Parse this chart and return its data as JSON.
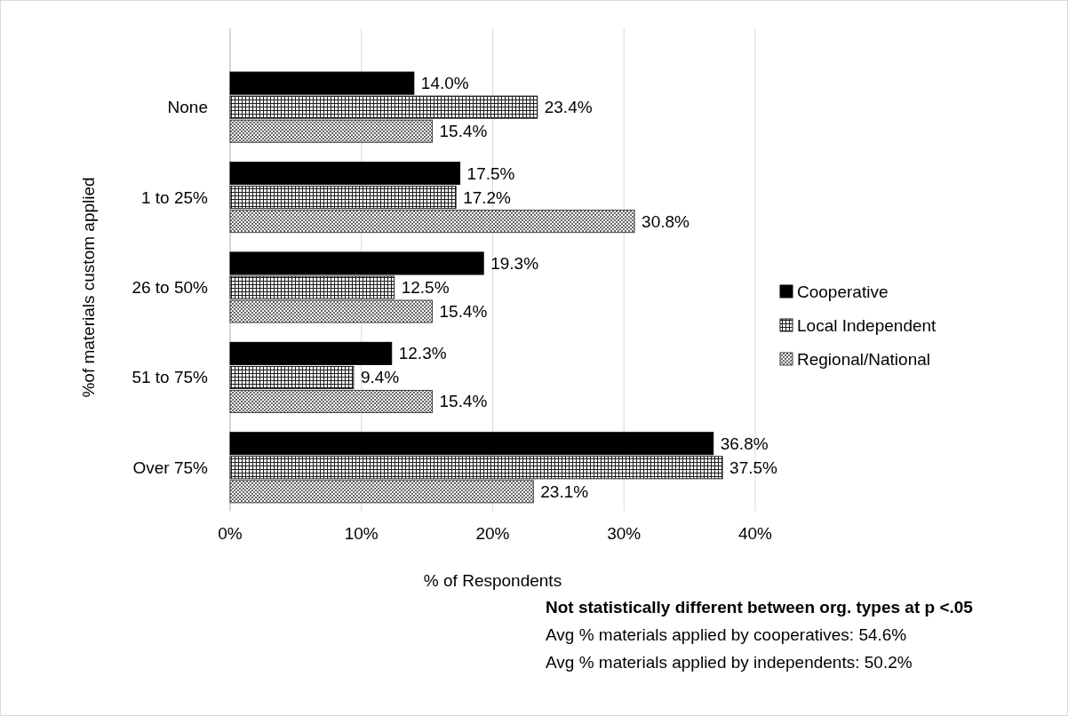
{
  "chart_data": {
    "type": "bar",
    "orientation": "horizontal",
    "xlabel": "% of Respondents",
    "ylabel": "%of materials custom applied",
    "categories": [
      "None",
      "1 to 25%",
      "26 to 50%",
      "51 to 75%",
      "Over 75%"
    ],
    "series": [
      {
        "name": "Cooperative",
        "color": "#000000",
        "values": [
          14.0,
          17.5,
          19.3,
          12.3,
          36.8
        ],
        "value_labels": [
          "14.0%",
          "17.5%",
          "19.3%",
          "12.3%",
          "36.8%"
        ]
      },
      {
        "name": "Local Independent",
        "color": "#1a1a1a",
        "values": [
          23.4,
          17.2,
          12.5,
          9.4,
          37.5
        ],
        "value_labels": [
          "23.4%",
          "17.2%",
          "12.5%",
          "9.4%",
          "37.5%"
        ]
      },
      {
        "name": "Regional/National",
        "color": "#404040",
        "values": [
          15.4,
          30.8,
          15.4,
          15.4,
          23.1
        ],
        "value_labels": [
          "15.4%",
          "30.8%",
          "15.4%",
          "15.4%",
          "23.1%"
        ]
      }
    ],
    "xlim": [
      0,
      40
    ],
    "xticks": [
      {
        "value": 0,
        "label": "0%"
      },
      {
        "value": 10,
        "label": "10%"
      },
      {
        "value": 20,
        "label": "20%"
      },
      {
        "value": 30,
        "label": "30%"
      },
      {
        "value": 40,
        "label": "40%"
      }
    ],
    "grid": "x",
    "legend": "right",
    "annotations": [
      "Not statistically different between org. types at p <.05",
      "Avg % materials applied by cooperatives: 54.6%",
      "Avg % materials applied by independents: 50.2%"
    ]
  }
}
